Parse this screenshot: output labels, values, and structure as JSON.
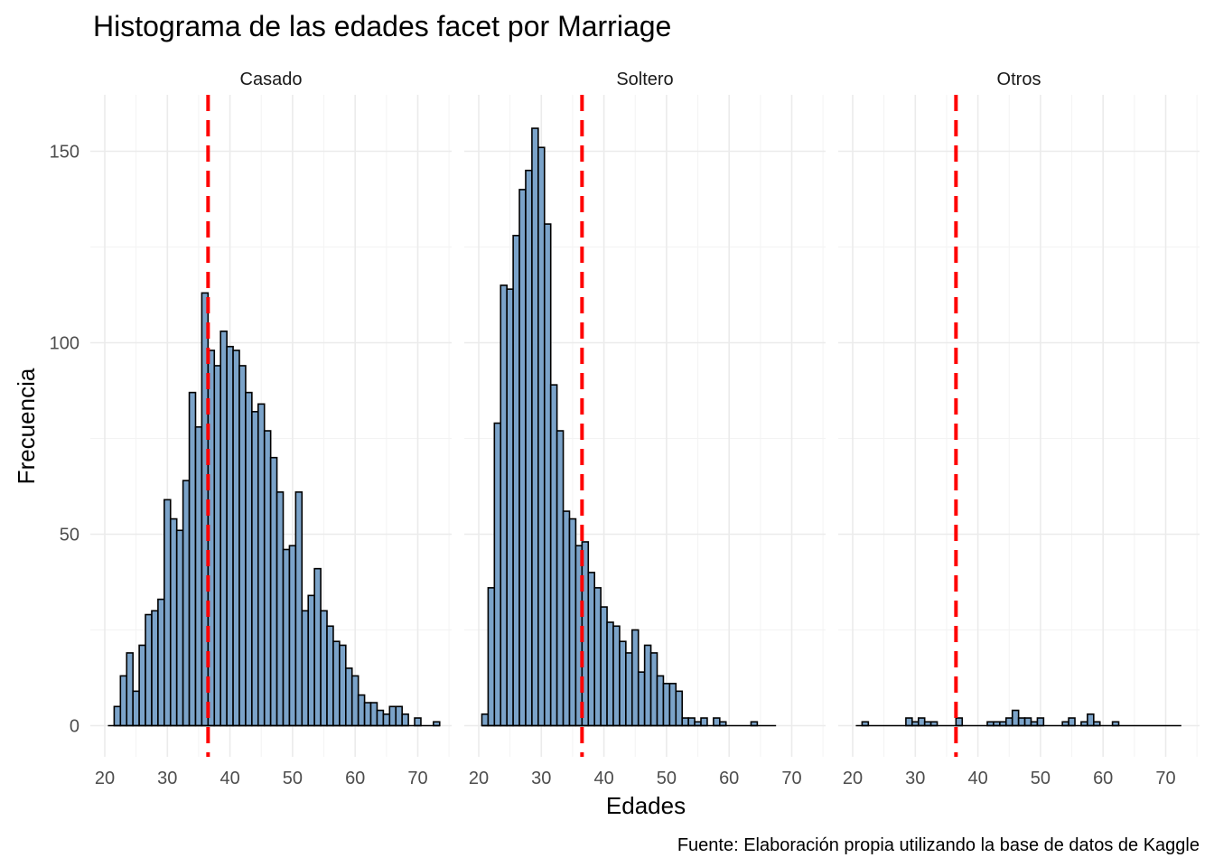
{
  "chart_data": {
    "type": "bar",
    "title": "Histograma de las edades facet por Marriage",
    "xlabel": "Edades",
    "ylabel": "Frecuencia",
    "caption": "Fuente: Elaboración propia utilizando la base de datos de Kaggle",
    "xlim": [
      20,
      73
    ],
    "ylim": [
      0,
      160
    ],
    "x_ticks": [
      20,
      30,
      40,
      50,
      60,
      70
    ],
    "y_ticks": [
      0,
      50,
      100,
      150
    ],
    "grid": true,
    "bar_fill": "#7ba3c9",
    "bar_outline": "#000000",
    "mean_line_color": "#ff0000",
    "mean_line": 36.5,
    "bin_start": 21,
    "bin_width": 1,
    "panels": [
      {
        "label": "Casado",
        "values": [
          0,
          5,
          13,
          19,
          9,
          21,
          29,
          30,
          33,
          59,
          54,
          51,
          64,
          87,
          78,
          113,
          98,
          94,
          103,
          99,
          98,
          94,
          87,
          82,
          84,
          77,
          70,
          61,
          46,
          47,
          61,
          30,
          34,
          41,
          30,
          26,
          22,
          21,
          15,
          13,
          8,
          6,
          6,
          4,
          3,
          5,
          5,
          3,
          0,
          2,
          0,
          0,
          1
        ]
      },
      {
        "label": "Soltero",
        "values": [
          3,
          36,
          79,
          115,
          114,
          128,
          140,
          145,
          156,
          151,
          131,
          89,
          77,
          56,
          54,
          47,
          48,
          40,
          36,
          31,
          27,
          26,
          22,
          19,
          25,
          14,
          21,
          19,
          13,
          11,
          11,
          9,
          2,
          2,
          1,
          2,
          0,
          2,
          1,
          0,
          0,
          0,
          0,
          1,
          0,
          0,
          0
        ]
      },
      {
        "label": "Otros",
        "values": [
          0,
          1,
          0,
          0,
          0,
          0,
          0,
          0,
          2,
          1,
          2,
          1,
          1,
          0,
          0,
          0,
          2,
          0,
          0,
          0,
          0,
          1,
          1,
          1,
          2,
          4,
          2,
          2,
          1,
          2,
          0,
          0,
          0,
          1,
          2,
          0,
          1,
          3,
          1,
          0,
          0,
          1,
          0,
          0,
          0,
          0,
          0,
          0,
          0,
          0,
          0,
          0
        ]
      }
    ]
  }
}
